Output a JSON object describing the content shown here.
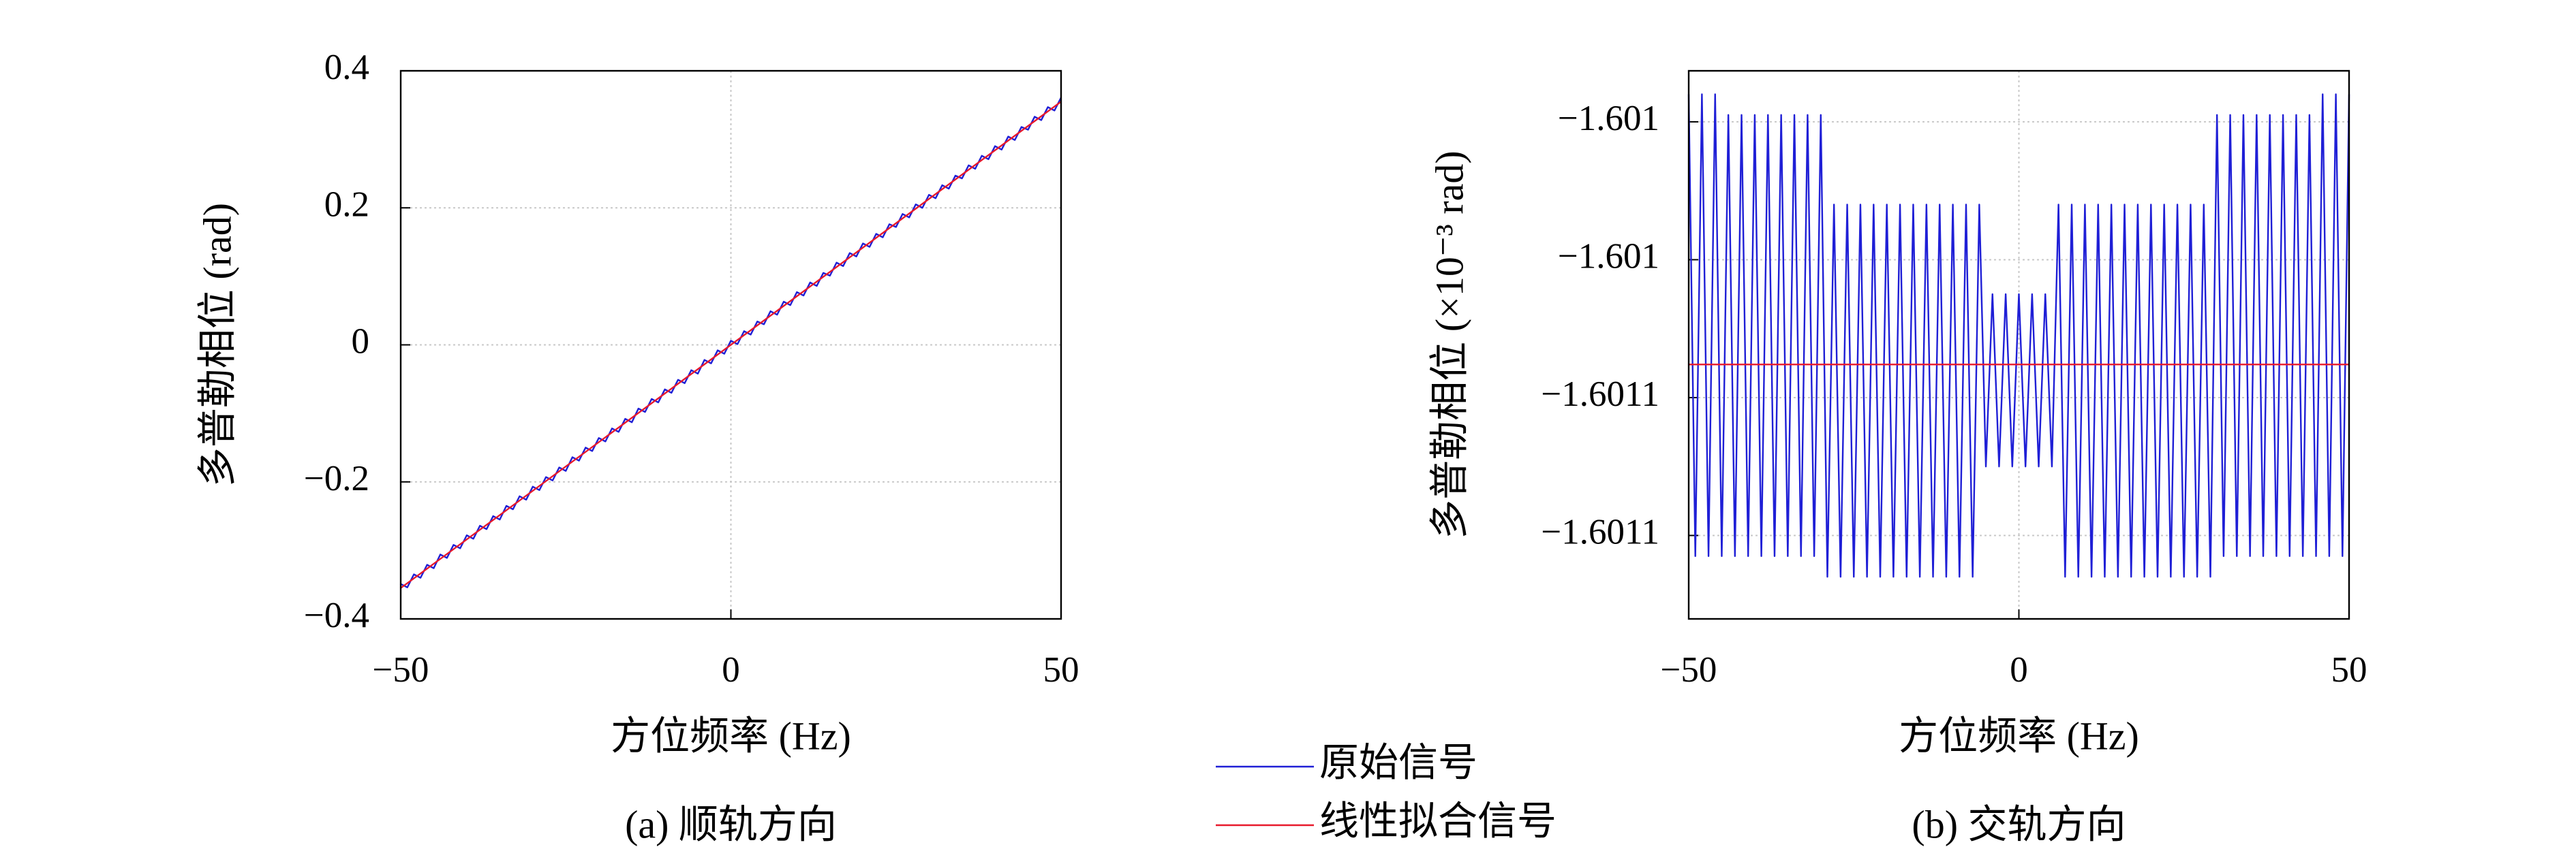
{
  "chart_data": [
    {
      "type": "line",
      "x_label": "方位频率 (Hz)",
      "y_label": "多普勒相位 (rad)",
      "caption": "(a) 顺轨方向",
      "xlim": [
        -50,
        50
      ],
      "ylim": [
        -0.4,
        0.4
      ],
      "xticks": [
        {
          "value": -50,
          "label": "−50"
        },
        0,
        50
      ],
      "yticks": [
        {
          "value": -0.4,
          "label": "−0.4"
        },
        {
          "value": -0.2,
          "label": "−0.2"
        },
        0,
        0.2,
        0.4
      ],
      "grid": true,
      "x": [
        -50,
        -49,
        -48,
        -47,
        -46,
        -45,
        -44,
        -43,
        -42,
        -41,
        -40,
        -39,
        -38,
        -37,
        -36,
        -35,
        -34,
        -33,
        -32,
        -31,
        -30,
        -29,
        -28,
        -27,
        -26,
        -25,
        -24,
        -23,
        -22,
        -21,
        -20,
        -19,
        -18,
        -17,
        -16,
        -15,
        -14,
        -13,
        -12,
        -11,
        -10,
        -9,
        -8,
        -7,
        -6,
        -5,
        -4,
        -3,
        -2,
        -1,
        0,
        1,
        2,
        3,
        4,
        5,
        6,
        7,
        8,
        9,
        10,
        11,
        12,
        13,
        14,
        15,
        16,
        17,
        18,
        19,
        20,
        21,
        22,
        23,
        24,
        25,
        26,
        27,
        28,
        29,
        30,
        31,
        32,
        33,
        34,
        35,
        36,
        37,
        38,
        39,
        40,
        41,
        42,
        43,
        44,
        45,
        46,
        47,
        48,
        49,
        50
      ],
      "series": [
        {
          "name": "原始信号",
          "color": "#1f1fd6",
          "values": [
            -0.349,
            -0.354,
            -0.335,
            -0.34,
            -0.321,
            -0.326,
            -0.306,
            -0.311,
            -0.292,
            -0.297,
            -0.278,
            -0.283,
            -0.264,
            -0.269,
            -0.25,
            -0.255,
            -0.235,
            -0.24,
            -0.221,
            -0.226,
            -0.207,
            -0.212,
            -0.193,
            -0.198,
            -0.179,
            -0.184,
            -0.164,
            -0.169,
            -0.15,
            -0.155,
            -0.136,
            -0.141,
            -0.122,
            -0.127,
            -0.108,
            -0.113,
            -0.093,
            -0.098,
            -0.079,
            -0.084,
            -0.065,
            -0.07,
            -0.051,
            -0.056,
            -0.037,
            -0.042,
            -0.022,
            -0.027,
            -0.008,
            -0.013,
            0.006,
            0.001,
            0.02,
            0.015,
            0.034,
            0.03,
            0.049,
            0.044,
            0.063,
            0.058,
            0.077,
            0.072,
            0.091,
            0.086,
            0.105,
            0.101,
            0.12,
            0.115,
            0.134,
            0.129,
            0.148,
            0.143,
            0.162,
            0.157,
            0.176,
            0.172,
            0.191,
            0.186,
            0.205,
            0.2,
            0.219,
            0.214,
            0.233,
            0.228,
            0.247,
            0.243,
            0.262,
            0.257,
            0.276,
            0.271,
            0.29,
            0.285,
            0.304,
            0.299,
            0.318,
            0.314,
            0.333,
            0.328,
            0.347,
            0.342,
            0.361
          ]
        },
        {
          "name": "线性拟合信号",
          "color": "#e8192c",
          "x": [
            -50,
            50
          ],
          "values": [
            -0.355,
            0.355
          ]
        }
      ]
    },
    {
      "type": "line",
      "x_label": "方位频率 (Hz)",
      "y_label": "多普勒相位 (×10⁻³ rad)",
      "caption": "(b) 交轨方向",
      "xlim": [
        -50,
        50
      ],
      "ylim": [
        -1.6010921,
        -1.6010126
      ],
      "xticks": [
        {
          "value": -50,
          "label": "−50"
        },
        0,
        50
      ],
      "yticks": [
        {
          "value": -1.60108,
          "label": "−1.6011"
        },
        {
          "value": -1.60106,
          "label": "−1.6011"
        },
        {
          "value": -1.60104,
          "label": "−1.601"
        },
        {
          "value": -1.60102,
          "label": "−1.601"
        }
      ],
      "grid": true,
      "x": [
        -50,
        -49,
        -48,
        -47,
        -46,
        -45,
        -44,
        -43,
        -42,
        -41,
        -40,
        -39,
        -38,
        -37,
        -36,
        -35,
        -34,
        -33,
        -32,
        -31,
        -30,
        -29,
        -28,
        -27,
        -26,
        -25,
        -24,
        -23,
        -22,
        -21,
        -20,
        -19,
        -18,
        -17,
        -16,
        -15,
        -14,
        -13,
        -12,
        -11,
        -10,
        -9,
        -8,
        -7,
        -6,
        -5,
        -4,
        -3,
        -2,
        -1,
        0,
        1,
        2,
        3,
        4,
        5,
        6,
        7,
        8,
        9,
        10,
        11,
        12,
        13,
        14,
        15,
        16,
        17,
        18,
        19,
        20,
        21,
        22,
        23,
        24,
        25,
        26,
        27,
        28,
        29,
        30,
        31,
        32,
        33,
        34,
        35,
        36,
        37,
        38,
        39,
        40,
        41,
        42,
        43,
        44,
        45,
        46,
        47,
        48,
        49,
        50
      ],
      "series": [
        {
          "color": "#1f1fd6",
          "values": [
            -1.601016,
            -1.601083,
            -1.601016,
            -1.601083,
            -1.601016,
            -1.601083,
            -1.601019,
            -1.601083,
            -1.601019,
            -1.601083,
            -1.601019,
            -1.601083,
            -1.601019,
            -1.601083,
            -1.601019,
            -1.601083,
            -1.601019,
            -1.601083,
            -1.601019,
            -1.601083,
            -1.601019,
            -1.601086,
            -1.601032,
            -1.601086,
            -1.601032,
            -1.601086,
            -1.601032,
            -1.601086,
            -1.601032,
            -1.601086,
            -1.601032,
            -1.601086,
            -1.601032,
            -1.601086,
            -1.601032,
            -1.601086,
            -1.601032,
            -1.601086,
            -1.601032,
            -1.601086,
            -1.601032,
            -1.601086,
            -1.601032,
            -1.601086,
            -1.601032,
            -1.60107,
            -1.601045,
            -1.60107,
            -1.601045,
            -1.60107,
            -1.601045,
            -1.60107,
            -1.601045,
            -1.60107,
            -1.601045,
            -1.60107,
            -1.601032,
            -1.601086,
            -1.601032,
            -1.601086,
            -1.601032,
            -1.601086,
            -1.601032,
            -1.601086,
            -1.601032,
            -1.601086,
            -1.601032,
            -1.601086,
            -1.601032,
            -1.601086,
            -1.601032,
            -1.601086,
            -1.601032,
            -1.601086,
            -1.601032,
            -1.601086,
            -1.601032,
            -1.601086,
            -1.601032,
            -1.601086,
            -1.601019,
            -1.601083,
            -1.601019,
            -1.601083,
            -1.601019,
            -1.601083,
            -1.601019,
            -1.601083,
            -1.601019,
            -1.601083,
            -1.601019,
            -1.601083,
            -1.601019,
            -1.601083,
            -1.601019,
            -1.601083,
            -1.601016,
            -1.601083,
            -1.601016,
            -1.601083,
            -1.601016
          ]
        },
        {
          "color": "#e8192c",
          "x": [
            -50,
            50
          ],
          "values": [
            -1.6010552,
            -1.6010552
          ]
        }
      ]
    }
  ]
}
